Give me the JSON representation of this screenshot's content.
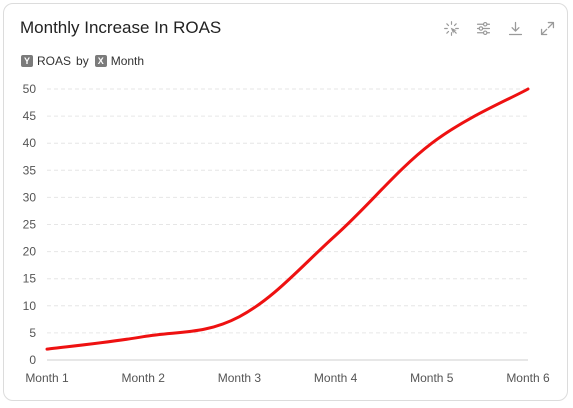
{
  "header": {
    "title": "Monthly Increase In ROAS",
    "toolbar_icons": [
      "select-icon",
      "filter-settings-icon",
      "download-icon",
      "expand-icon"
    ]
  },
  "subtitle": {
    "y_badge": "Y",
    "y_field": "ROAS",
    "by_label": "by",
    "x_badge": "X",
    "x_field": "Month"
  },
  "chart_data": {
    "type": "line",
    "x": [
      "Month 1",
      "Month 2",
      "Month 3",
      "Month 4",
      "Month 5",
      "Month 6"
    ],
    "series": [
      {
        "values": [
          2,
          4.3,
          8,
          23,
          40,
          50
        ],
        "color": "#ee1111"
      }
    ],
    "ylim": [
      0,
      50
    ],
    "yticks": [
      0,
      5,
      10,
      15,
      20,
      25,
      30,
      35,
      40,
      45,
      50
    ],
    "grid": true,
    "legend": "none",
    "title": "Monthly Increase In ROAS"
  }
}
